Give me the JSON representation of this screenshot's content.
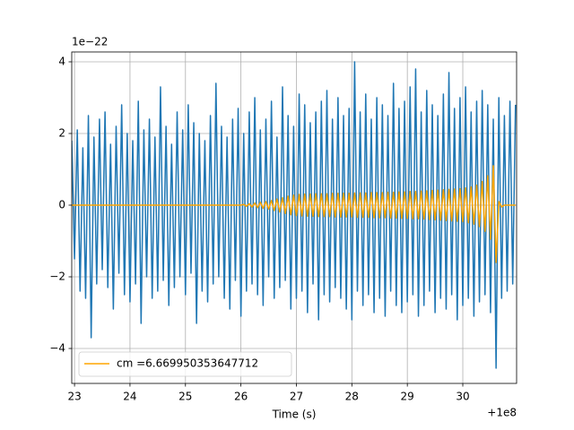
{
  "chart_data": {
    "type": "line",
    "xlabel": "Time (s)",
    "x_offset_label": "+1e8",
    "y_offset_label": "1e−22",
    "xlim": [
      22.95,
      30.97
    ],
    "ylim": [
      -4.975,
      4.275
    ],
    "xticks": [
      23,
      24,
      25,
      26,
      27,
      28,
      29,
      30
    ],
    "yticks": [
      {
        "value": -4,
        "label": "−4"
      },
      {
        "value": -2,
        "label": "−2"
      },
      0,
      2,
      4
    ],
    "grid": true,
    "legend": "lower left",
    "x": [
      22.95,
      23,
      23.05,
      23.1,
      23.15,
      23.2,
      23.25,
      23.3,
      23.35,
      23.4,
      23.45,
      23.5,
      23.55,
      23.6,
      23.65,
      23.7,
      23.75,
      23.8,
      23.85,
      23.9,
      23.95,
      24,
      24.05,
      24.1,
      24.15,
      24.2,
      24.25,
      24.3,
      24.35,
      24.4,
      24.45,
      24.5,
      24.55,
      24.6,
      24.65,
      24.7,
      24.75,
      24.8,
      24.85,
      24.9,
      24.95,
      25,
      25.05,
      25.1,
      25.15,
      25.2,
      25.25,
      25.3,
      25.35,
      25.4,
      25.45,
      25.5,
      25.55,
      25.6,
      25.65,
      25.7,
      25.75,
      25.8,
      25.85,
      25.9,
      25.95,
      26,
      26.05,
      26.1,
      26.15,
      26.2,
      26.25,
      26.3,
      26.35,
      26.4,
      26.45,
      26.5,
      26.55,
      26.6,
      26.65,
      26.7,
      26.75,
      26.8,
      26.85,
      26.9,
      26.95,
      27,
      27.05,
      27.1,
      27.15,
      27.2,
      27.25,
      27.3,
      27.35,
      27.4,
      27.45,
      27.5,
      27.55,
      27.6,
      27.65,
      27.7,
      27.75,
      27.8,
      27.85,
      27.9,
      27.95,
      28,
      28.05,
      28.1,
      28.15,
      28.2,
      28.25,
      28.3,
      28.35,
      28.4,
      28.45,
      28.5,
      28.55,
      28.6,
      28.65,
      28.7,
      28.75,
      28.8,
      28.85,
      28.9,
      28.95,
      29,
      29.05,
      29.1,
      29.15,
      29.2,
      29.25,
      29.3,
      29.35,
      29.4,
      29.45,
      29.5,
      29.55,
      29.6,
      29.65,
      29.7,
      29.75,
      29.8,
      29.85,
      29.9,
      29.95,
      30,
      30.05,
      30.1,
      30.15,
      30.2,
      30.25,
      30.3,
      30.35,
      30.4,
      30.45,
      30.5,
      30.55,
      30.6,
      30.65,
      30.7,
      30.75,
      30.8,
      30.85,
      30.9,
      30.95
    ],
    "series": [
      {
        "color": "#1f77b4",
        "legend": false,
        "values": [
          1.8,
          -1.5,
          2.1,
          -2.4,
          1.6,
          -2.6,
          2.5,
          -3.7,
          1.9,
          -2.2,
          2.4,
          -1.8,
          2.6,
          -2.3,
          1.7,
          -2.9,
          2.2,
          -1.9,
          2.8,
          -2.5,
          2.0,
          -2.7,
          1.8,
          -2.2,
          2.9,
          -3.3,
          2.1,
          -2.0,
          2.4,
          -2.6,
          1.9,
          -2.4,
          3.3,
          -2.1,
          2.2,
          -2.8,
          1.7,
          -2.3,
          2.6,
          -2.0,
          2.1,
          -2.5,
          2.8,
          -1.9,
          2.3,
          -3.3,
          2.0,
          -2.4,
          1.8,
          -2.7,
          2.5,
          -2.2,
          3.4,
          -2.0,
          2.2,
          -2.6,
          1.9,
          -2.9,
          2.4,
          -2.1,
          2.7,
          -3.1,
          2.0,
          -2.4,
          2.6,
          -2.2,
          3.0,
          -2.5,
          2.1,
          -2.8,
          2.4,
          -2.0,
          2.9,
          -2.6,
          1.9,
          -2.3,
          3.3,
          -2.1,
          2.5,
          -2.9,
          2.2,
          -2.6,
          3.1,
          -2.4,
          2.8,
          -3.0,
          2.3,
          -2.2,
          2.6,
          -3.2,
          2.9,
          -2.5,
          3.2,
          -2.7,
          2.4,
          -2.3,
          3.0,
          -2.6,
          2.5,
          -2.9,
          2.7,
          -3.2,
          4.0,
          -2.4,
          2.6,
          -2.8,
          3.1,
          -2.5,
          2.4,
          -3.0,
          3.0,
          -2.6,
          2.8,
          -3.1,
          2.5,
          -2.4,
          3.4,
          -2.8,
          2.7,
          -3.0,
          2.9,
          -2.7,
          3.3,
          -2.5,
          3.8,
          -3.1,
          2.6,
          -2.8,
          3.2,
          -2.4,
          2.8,
          -3.0,
          2.5,
          -2.6,
          3.1,
          -2.9,
          3.7,
          -2.5,
          2.7,
          -3.2,
          3.0,
          -2.8,
          3.3,
          -2.6,
          2.6,
          -3.1,
          2.9,
          -2.7,
          3.2,
          -2.5,
          2.8,
          -3.0,
          2.4,
          -4.55,
          3.0,
          -2.6,
          2.5,
          -2.4,
          2.9,
          -2.2,
          2.8
        ]
      },
      {
        "name": "cm =6.669950353647712",
        "color": "orange",
        "legend": true,
        "values": [
          0,
          0,
          0,
          0,
          0,
          0,
          0,
          0,
          0,
          0,
          0,
          0,
          0,
          0,
          0,
          0,
          0,
          0,
          0,
          0,
          0,
          0,
          0,
          0,
          0,
          0,
          0,
          0,
          0,
          0,
          0,
          0,
          0,
          0,
          0,
          0,
          0,
          0,
          0,
          0,
          0,
          0,
          0,
          0,
          0,
          0,
          0,
          0,
          0,
          0,
          0,
          0,
          0,
          0,
          0,
          0,
          0,
          0,
          0,
          0,
          0,
          0,
          0.02,
          -0.03,
          0.04,
          -0.05,
          0.06,
          -0.07,
          0.08,
          -0.09,
          0.1,
          -0.11,
          0.13,
          -0.15,
          0.17,
          -0.19,
          0.21,
          -0.23,
          0.25,
          -0.27,
          0.28,
          -0.29,
          0.3,
          -0.3,
          0.31,
          -0.31,
          0.31,
          -0.31,
          0.32,
          -0.32,
          0.32,
          -0.32,
          0.32,
          -0.32,
          0.33,
          -0.33,
          0.33,
          -0.33,
          0.33,
          -0.33,
          0.33,
          -0.33,
          0.34,
          -0.34,
          0.34,
          -0.34,
          0.34,
          -0.34,
          0.35,
          -0.35,
          0.35,
          -0.35,
          0.35,
          -0.35,
          0.36,
          -0.36,
          0.36,
          -0.36,
          0.37,
          -0.37,
          0.37,
          -0.37,
          0.38,
          -0.38,
          0.38,
          -0.38,
          0.39,
          -0.39,
          0.4,
          -0.4,
          0.41,
          -0.41,
          0.42,
          -0.42,
          0.43,
          -0.43,
          0.44,
          -0.44,
          0.45,
          -0.45,
          0.46,
          -0.46,
          0.48,
          -0.49,
          0.51,
          -0.53,
          0.56,
          -0.6,
          0.66,
          -0.73,
          0.82,
          -0.95,
          1.1,
          -1.6,
          0.1,
          -0.05,
          0,
          0,
          0,
          0,
          0
        ]
      }
    ]
  }
}
